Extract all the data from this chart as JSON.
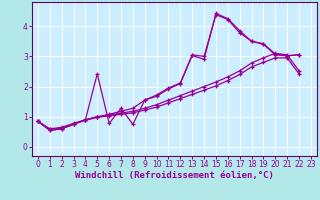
{
  "background_color": "#b3e8e8",
  "plot_bg_color": "#cceeff",
  "grid_color": "#ffffff",
  "line_color": "#990099",
  "spine_color": "#660066",
  "xlabel": "Windchill (Refroidissement éolien,°C)",
  "tick_fontsize": 5.5,
  "xlabel_fontsize": 6.5,
  "xlim": [
    -0.5,
    23.5
  ],
  "ylim": [
    -0.3,
    4.8
  ],
  "yticks": [
    0,
    1,
    2,
    3,
    4
  ],
  "xticks": [
    0,
    1,
    2,
    3,
    4,
    5,
    6,
    7,
    8,
    9,
    10,
    11,
    12,
    13,
    14,
    15,
    16,
    17,
    18,
    19,
    20,
    21,
    22,
    23
  ],
  "series": [
    [
      0.85,
      0.55,
      0.6,
      0.75,
      0.9,
      2.42,
      0.78,
      1.28,
      0.75,
      1.55,
      1.68,
      1.92,
      2.1,
      3.03,
      2.9,
      4.42,
      4.25,
      3.85,
      3.5,
      3.4,
      3.05,
      3.02,
      3.05
    ],
    [
      0.85,
      0.55,
      0.6,
      0.75,
      0.9,
      1.0,
      1.08,
      1.18,
      1.28,
      1.55,
      1.72,
      1.95,
      2.12,
      3.05,
      3.0,
      4.38,
      4.22,
      3.78,
      3.5,
      3.42,
      3.08,
      3.02,
      3.05
    ],
    [
      0.85,
      0.6,
      0.65,
      0.78,
      0.9,
      1.0,
      1.05,
      1.12,
      1.18,
      1.28,
      1.4,
      1.55,
      1.7,
      1.85,
      2.0,
      2.15,
      2.32,
      2.52,
      2.78,
      2.95,
      3.1,
      3.05,
      2.52
    ],
    [
      0.85,
      0.58,
      0.62,
      0.76,
      0.88,
      0.98,
      1.03,
      1.08,
      1.13,
      1.22,
      1.32,
      1.46,
      1.6,
      1.74,
      1.88,
      2.02,
      2.2,
      2.4,
      2.65,
      2.8,
      2.95,
      2.95,
      2.42
    ]
  ]
}
